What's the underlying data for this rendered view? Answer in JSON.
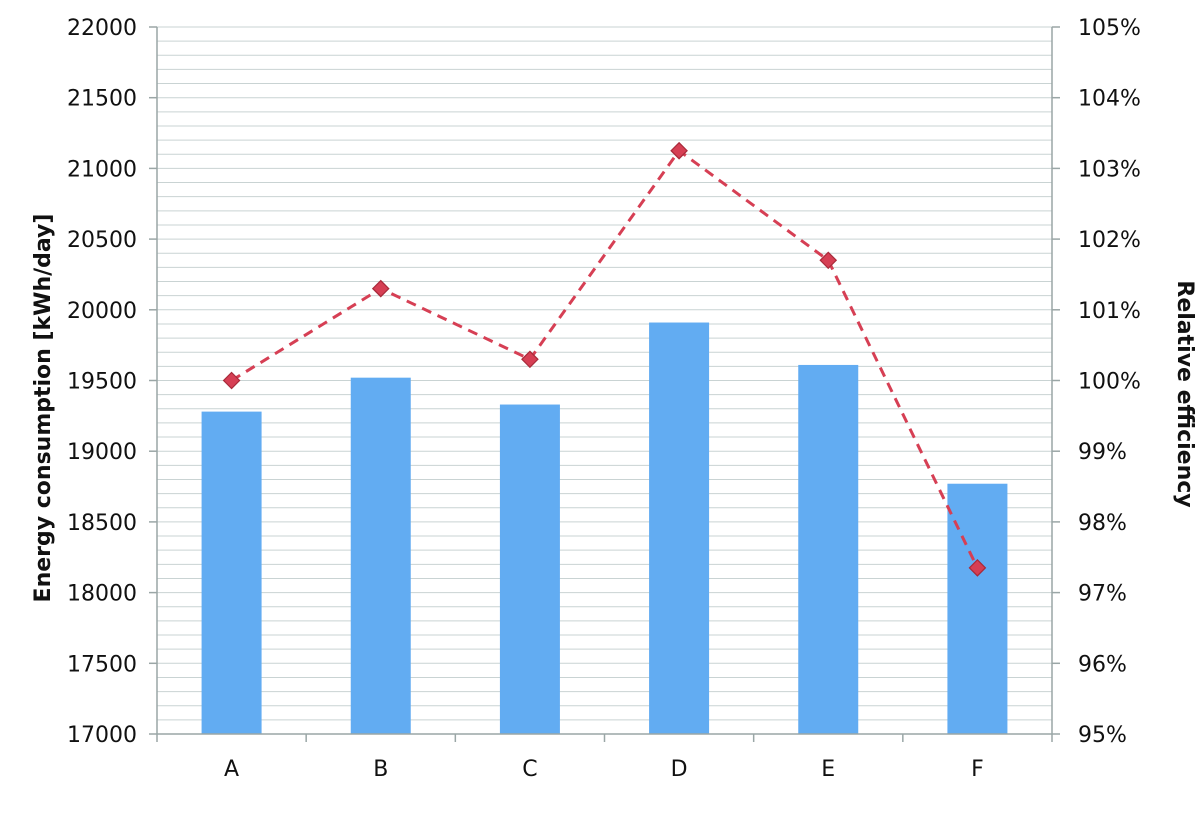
{
  "chart_data": {
    "type": "bar",
    "categories": [
      "A",
      "B",
      "C",
      "D",
      "E",
      "F"
    ],
    "series": [
      {
        "chart_type": "bar",
        "axis": "left",
        "color": "#62acf2",
        "values": [
          19280,
          19520,
          19330,
          19910,
          19610,
          18770
        ]
      },
      {
        "chart_type": "line",
        "axis": "right",
        "color": "#d63f54",
        "line_style": "dashed",
        "marker": "diamond",
        "values": [
          100.0,
          101.3,
          100.3,
          103.25,
          101.7,
          97.35
        ]
      }
    ],
    "ylabel": "Energy consumption [kWh/day]",
    "y2label": "Relative efficiency",
    "xlabel": "",
    "title": "",
    "ylim": [
      17000,
      22000
    ],
    "y2lim": [
      95,
      105
    ],
    "yticks": [
      "17000",
      "17500",
      "18000",
      "18500",
      "19000",
      "19500",
      "20000",
      "20500",
      "21000",
      "21500",
      "22000"
    ],
    "y2ticks": [
      "95%",
      "96%",
      "97%",
      "98%",
      "99%",
      "100%",
      "101%",
      "102%",
      "103%",
      "104%",
      "105%"
    ],
    "grid": true,
    "legend": "none"
  },
  "colors": {
    "grid": "#c9d3d3",
    "axis": "#9aa6a6"
  }
}
